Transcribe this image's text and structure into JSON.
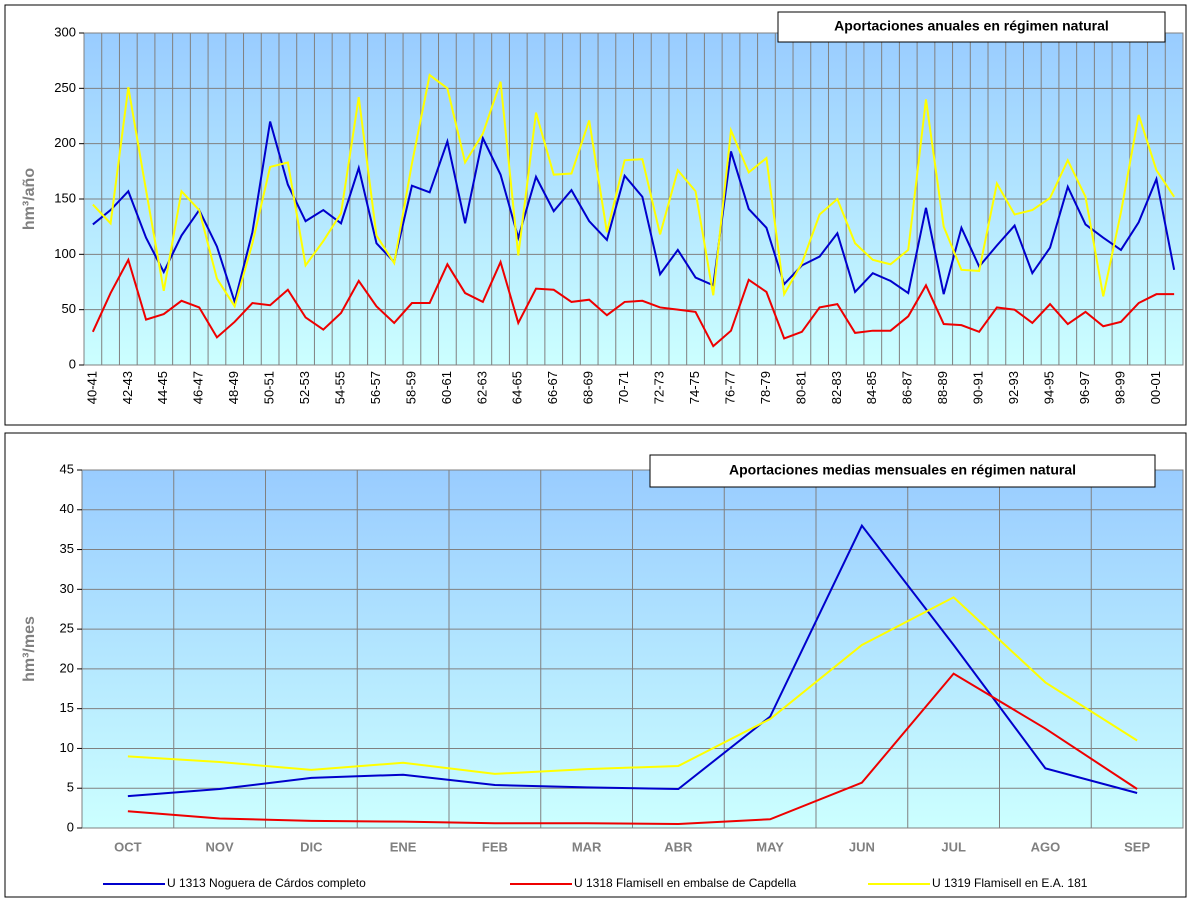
{
  "chart_data": [
    {
      "type": "line",
      "title": "Aportaciones anuales en régimen natural",
      "y_label": "hm³/año",
      "categories": [
        "40-41",
        null,
        "42-43",
        null,
        "44-45",
        null,
        "46-47",
        null,
        "48-49",
        null,
        "50-51",
        null,
        "52-53",
        null,
        "54-55",
        null,
        "56-57",
        null,
        "58-59",
        null,
        "60-61",
        null,
        "62-63",
        null,
        "64-65",
        null,
        "66-67",
        null,
        "68-69",
        null,
        "70-71",
        null,
        "72-73",
        null,
        "74-75",
        null,
        "76-77",
        null,
        "78-79",
        null,
        "80-81",
        null,
        "82-83",
        null,
        "84-85",
        null,
        "86-87",
        null,
        "88-89",
        null,
        "90-91",
        null,
        "92-93",
        null,
        "94-95",
        null,
        "96-97",
        null,
        "98-99",
        null,
        "00-01",
        null
      ],
      "series": [
        {
          "color": "#0000cc",
          "values": [
            127,
            140,
            157,
            115,
            84,
            117,
            140,
            107,
            57,
            120,
            220,
            163,
            130,
            140,
            128,
            178,
            110,
            93,
            162,
            156,
            202,
            128,
            205,
            172,
            115,
            170,
            139,
            158,
            130,
            113,
            171,
            152,
            82,
            104,
            79,
            72,
            193,
            141,
            124,
            73,
            90,
            98,
            119,
            66,
            83,
            76,
            65,
            142,
            64,
            124,
            89,
            108,
            126,
            83,
            106,
            161,
            127,
            115,
            104,
            129,
            168,
            86
          ]
        },
        {
          "color": "#ee0000",
          "values": [
            30,
            65,
            95,
            41,
            46,
            58,
            52,
            25,
            39,
            56,
            54,
            68,
            43,
            32,
            47,
            76,
            53,
            38,
            56,
            56,
            91,
            65,
            57,
            93,
            38,
            69,
            68,
            57,
            59,
            45,
            57,
            58,
            52,
            50,
            48,
            17,
            31,
            77,
            66,
            24,
            30,
            52,
            55,
            29,
            31,
            31,
            44,
            72,
            37,
            36,
            30,
            52,
            50,
            38,
            55,
            37,
            48,
            35,
            39,
            56,
            64,
            64
          ]
        },
        {
          "color": "#ffff00",
          "values": [
            145,
            128,
            251,
            158,
            67,
            157,
            140,
            78,
            53,
            110,
            179,
            183,
            90,
            112,
            137,
            242,
            117,
            92,
            182,
            262,
            250,
            183,
            209,
            256,
            99,
            228,
            172,
            173,
            221,
            120,
            185,
            186,
            118,
            176,
            157,
            63,
            212,
            174,
            187,
            64,
            92,
            136,
            150,
            110,
            95,
            91,
            104,
            240,
            125,
            86,
            85,
            164,
            136,
            140,
            151,
            185,
            152,
            62,
            138,
            226,
            176,
            152
          ]
        }
      ],
      "ylim": [
        0,
        300
      ],
      "yticks": [
        0,
        50,
        100,
        150,
        200,
        250,
        300
      ],
      "grid": true
    },
    {
      "type": "line",
      "title": "Aportaciones medias mensuales en régimen natural",
      "y_label": "hm³/mes",
      "categories": [
        "OCT",
        "NOV",
        "DIC",
        "ENE",
        "FEB",
        "MAR",
        "ABR",
        "MAY",
        "JUN",
        "JUL",
        "AGO",
        "SEP"
      ],
      "series": [
        {
          "name": "U 1313 Noguera de Cárdos completo",
          "color": "#0000cc",
          "values": [
            4.0,
            4.9,
            6.3,
            6.7,
            5.4,
            5.1,
            4.9,
            14,
            38,
            23,
            7.5,
            4.4
          ]
        },
        {
          "name": "U 1318 Flamisell en embalse de Capdella",
          "color": "#ee0000",
          "values": [
            2.1,
            1.2,
            0.9,
            0.8,
            0.6,
            0.6,
            0.5,
            1.1,
            5.7,
            19.4,
            12.5,
            4.9
          ]
        },
        {
          "name": "U 1319 Flamisell en E.A. 181",
          "color": "#ffff00",
          "values": [
            9.0,
            8.3,
            7.3,
            8.2,
            6.8,
            7.4,
            7.8,
            13.7,
            23,
            29,
            18.3,
            11
          ]
        }
      ],
      "ylim": [
        0,
        45
      ],
      "yticks": [
        0,
        5,
        10,
        15,
        20,
        25,
        30,
        35,
        40,
        45
      ],
      "grid": true
    }
  ]
}
